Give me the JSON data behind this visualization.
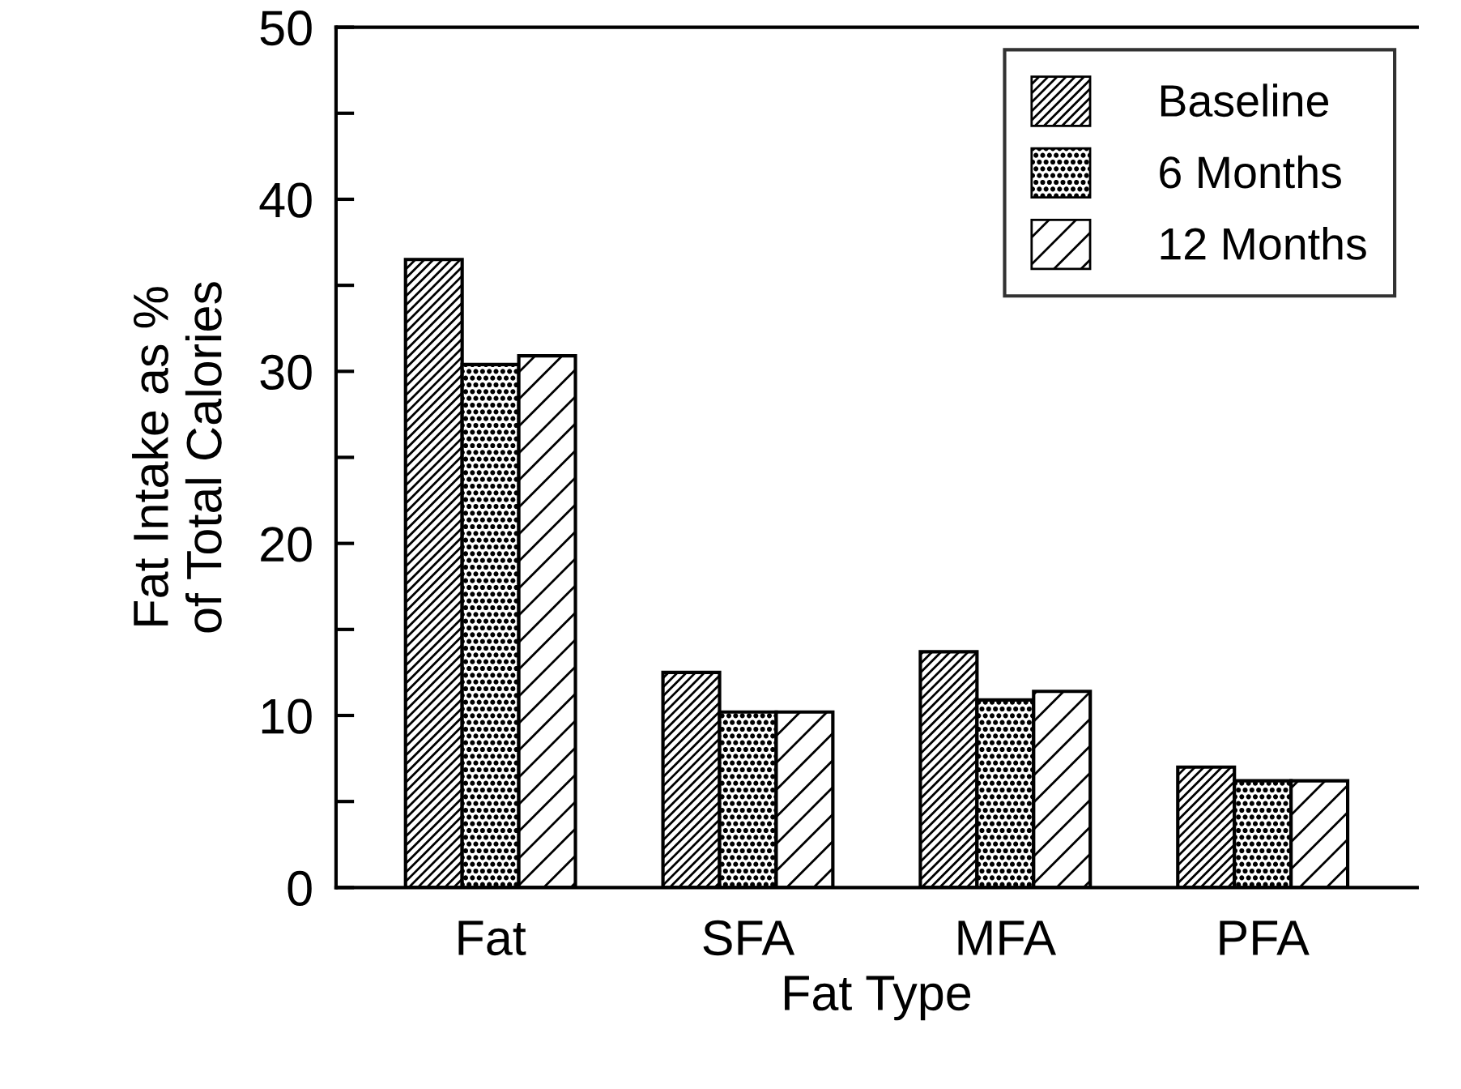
{
  "chart_data": {
    "type": "bar",
    "xlabel": "Fat Type",
    "ylabel": "Fat Intake as %\nof Total Calories",
    "categories": [
      "Fat",
      "SFA",
      "MFA",
      "PFA"
    ],
    "series": [
      {
        "name": "Baseline",
        "color": "#000000",
        "values": [
          36.5,
          12.5,
          13.7,
          7.0
        ]
      },
      {
        "name": "6 Months",
        "color": "#000000",
        "values": [
          30.4,
          10.2,
          10.9,
          6.2
        ]
      },
      {
        "name": "12 Months",
        "color": "#000000",
        "values": [
          30.9,
          10.2,
          11.4,
          6.2
        ]
      }
    ],
    "ylim": [
      0,
      50
    ],
    "yticks": [
      0,
      {
        "value": 5,
        "label": null
      },
      10,
      {
        "value": 15,
        "label": null
      },
      20,
      {
        "value": 25,
        "label": null
      },
      30,
      {
        "value": 35,
        "label": null
      },
      40,
      {
        "value": 45,
        "label": null
      },
      50
    ],
    "grid": false,
    "legend": "top right"
  }
}
